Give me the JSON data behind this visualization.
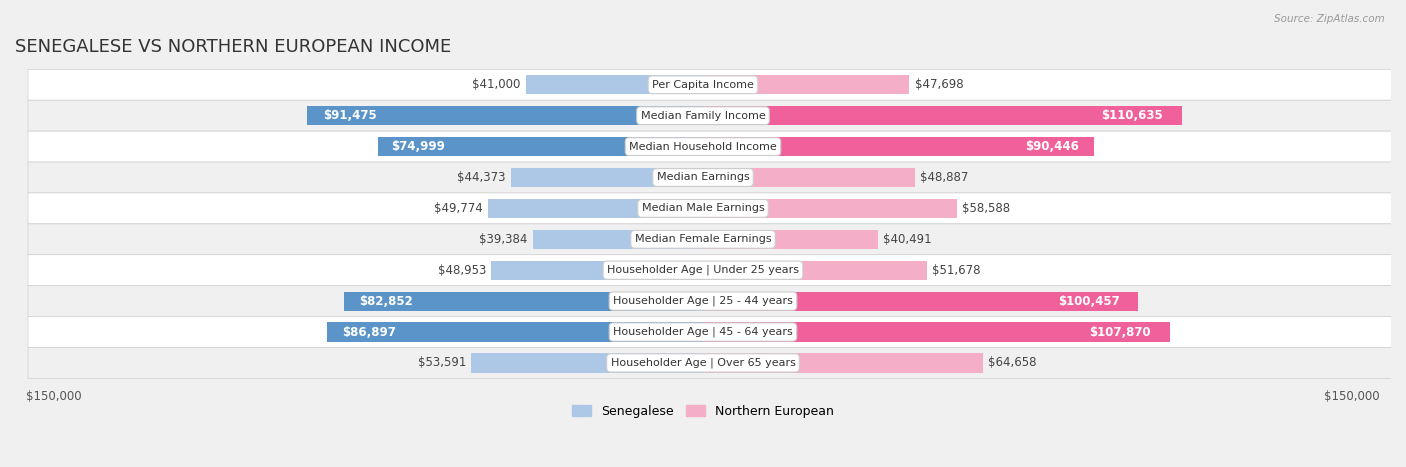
{
  "title": "SENEGALESE VS NORTHERN EUROPEAN INCOME",
  "source": "Source: ZipAtlas.com",
  "categories": [
    "Per Capita Income",
    "Median Family Income",
    "Median Household Income",
    "Median Earnings",
    "Median Male Earnings",
    "Median Female Earnings",
    "Householder Age | Under 25 years",
    "Householder Age | 25 - 44 years",
    "Householder Age | 45 - 64 years",
    "Householder Age | Over 65 years"
  ],
  "senegalese_values": [
    41000,
    91475,
    74999,
    44373,
    49774,
    39384,
    48953,
    82852,
    86897,
    53591
  ],
  "northern_european_values": [
    47698,
    110635,
    90446,
    48887,
    58588,
    40491,
    51678,
    100457,
    107870,
    64658
  ],
  "senegalese_labels": [
    "$41,000",
    "$91,475",
    "$74,999",
    "$44,373",
    "$49,774",
    "$39,384",
    "$48,953",
    "$82,852",
    "$86,897",
    "$53,591"
  ],
  "northern_european_labels": [
    "$47,698",
    "$110,635",
    "$90,446",
    "$48,887",
    "$58,588",
    "$40,491",
    "$51,678",
    "$100,457",
    "$107,870",
    "$64,658"
  ],
  "senegalese_color_light": "#adc8e6",
  "senegalese_color_dark": "#5b94c8",
  "northern_european_color_light": "#f5aec8",
  "northern_european_color_dark": "#f0609a",
  "sen_label_dark_threshold": 70000,
  "neu_label_dark_threshold": 80000,
  "max_value": 150000,
  "background_color": "#f0f0f0",
  "row_bg_white": "#ffffff",
  "row_bg_gray": "#f0f0f0",
  "row_border_color": "#d0d0d0",
  "xlim": 150000,
  "title_fontsize": 13,
  "label_fontsize": 8.5,
  "category_fontsize": 8,
  "legend_label_sen": "Senegalese",
  "legend_label_neu": "Northern European"
}
